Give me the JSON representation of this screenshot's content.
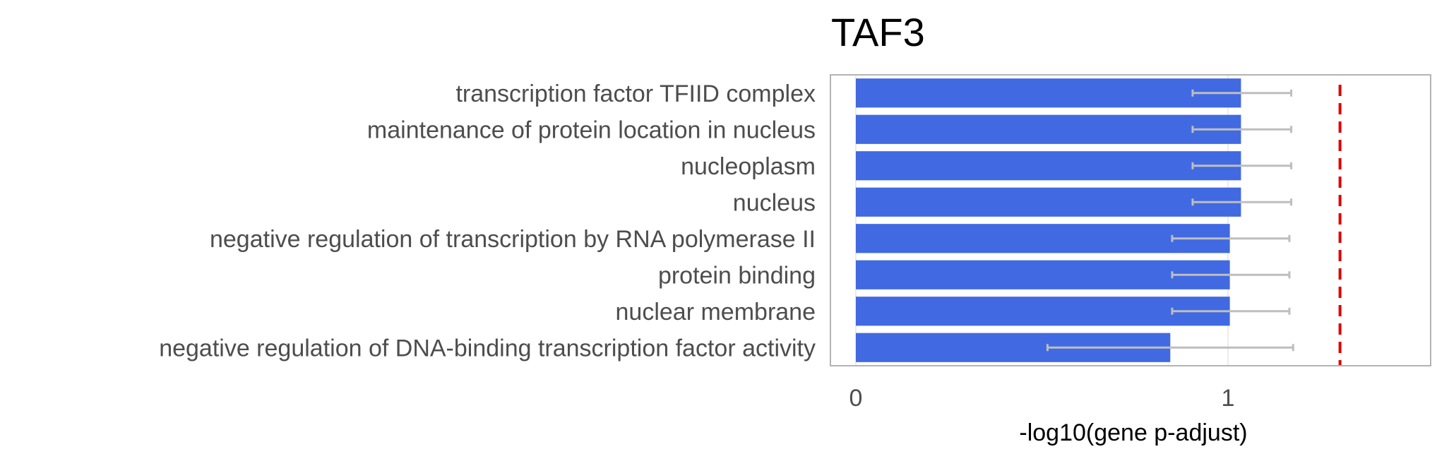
{
  "chart_data": {
    "type": "bar",
    "orientation": "horizontal",
    "title": "TAF3",
    "xlabel": "-log10(gene p-adjust)",
    "ylabel": "",
    "xlim": [
      -0.07,
      1.55
    ],
    "xticks": [
      0,
      1
    ],
    "grid": true,
    "legend": "none",
    "categories": [
      "transcription factor TFIID complex",
      "maintenance of protein location in nucleus",
      "nucleoplasm",
      "nucleus",
      "negative regulation of transcription by RNA polymerase II",
      "protein binding",
      "nuclear membrane",
      "negative regulation of DNA-binding transcription factor activity"
    ],
    "values": [
      1.035,
      1.035,
      1.035,
      1.035,
      1.005,
      1.005,
      1.005,
      0.845
    ],
    "error_low": [
      0.905,
      0.905,
      0.905,
      0.905,
      0.85,
      0.85,
      0.85,
      0.515
    ],
    "error_high": [
      1.17,
      1.17,
      1.17,
      1.17,
      1.165,
      1.165,
      1.165,
      1.175
    ],
    "threshold": 1.301,
    "colors": {
      "bar": "#4169e1",
      "error": "#bebebe",
      "threshold": "#e00000",
      "panel_border": "#b3b3b3",
      "grid": "#ebebeb"
    }
  }
}
